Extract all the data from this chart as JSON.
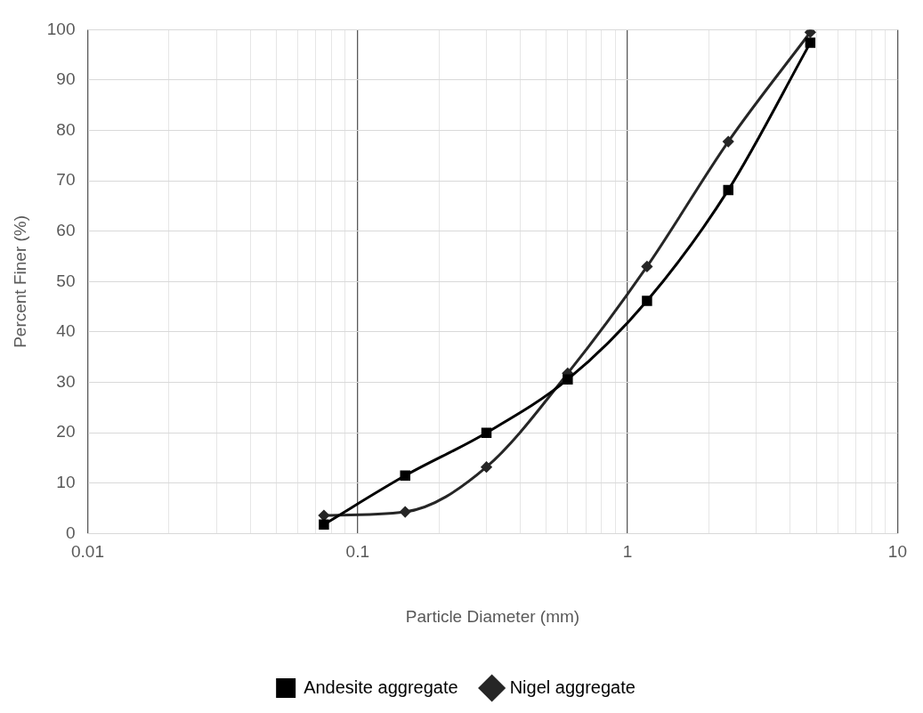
{
  "chart_data": {
    "type": "line",
    "xlabel": "Particle Diameter (mm)",
    "ylabel": "Percent Finer (%)",
    "x": [
      0.075,
      0.15,
      0.3,
      0.6,
      1.18,
      2.36,
      4.75
    ],
    "series": [
      {
        "name": "Andesite aggregate",
        "color": "#000000",
        "marker": "square",
        "values": [
          1.8,
          11.5,
          20,
          30.6,
          46.2,
          68.2,
          97.4
        ]
      },
      {
        "name": "Nigel aggregate",
        "color": "#262626",
        "marker": "diamond",
        "values": [
          3.6,
          4.3,
          13.2,
          31.8,
          53,
          77.8,
          99.5
        ]
      }
    ],
    "log": "x",
    "xlim": [
      0.01,
      10
    ],
    "xticks": [
      0.01,
      0.1,
      1,
      10
    ],
    "ylim": [
      0,
      100
    ],
    "yticks": [
      0,
      10,
      20,
      30,
      40,
      50,
      60,
      70,
      80,
      90,
      100
    ],
    "grid": true,
    "legend": "bottom"
  }
}
